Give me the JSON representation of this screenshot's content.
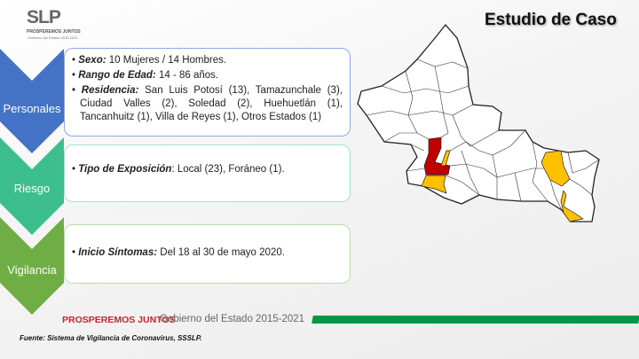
{
  "logo": {
    "text": "SLP",
    "tagline": "PROSPEREMOS JUNTOS",
    "subtitle": "Gobierno del Estado 2015-2021"
  },
  "title": "Estudio de Caso",
  "sections": [
    {
      "label": "Personales",
      "color": "#4472C4",
      "border": "#8FAADC",
      "items": [
        {
          "key": "Sexo:",
          "value": "  10 Mujeres / 14 Hombres."
        },
        {
          "key": "Rango de Edad:",
          "value": " 14 - 86 años."
        },
        {
          "key": "Residencia:",
          "value": " San Luis Potosí (13), Tamazunchale (3), Ciudad Valles (2), Soledad (2), Huehuetlán (1), Tancanhuitz (1), Villa de Reyes (1), Otros Estados (1)"
        }
      ]
    },
    {
      "label": "Riesgo",
      "color": "#3DBE8E",
      "border": "#A9E2CB",
      "items": [
        {
          "key": "Tipo de Exposición",
          "value": ": Local (23), Foráneo (1)."
        }
      ]
    },
    {
      "label": "Vigilancia",
      "color": "#6EAE45",
      "border": "#B9DDA4",
      "items": [
        {
          "key": "Inicio Síntomas:",
          "value": "  Del 18 al 30 de mayo 2020."
        }
      ]
    }
  ],
  "map": {
    "highlight_colors": {
      "red": "#C00000",
      "yellow": "#FFC000"
    }
  },
  "footer": {
    "tagline": "PROSPEREMOS JUNTOS",
    "government": "Gobierno del Estado 2015-2021",
    "accent": "#009846"
  },
  "source": "Fuente: Sistema de Vigilancia de Coronavirus, SSSLP."
}
